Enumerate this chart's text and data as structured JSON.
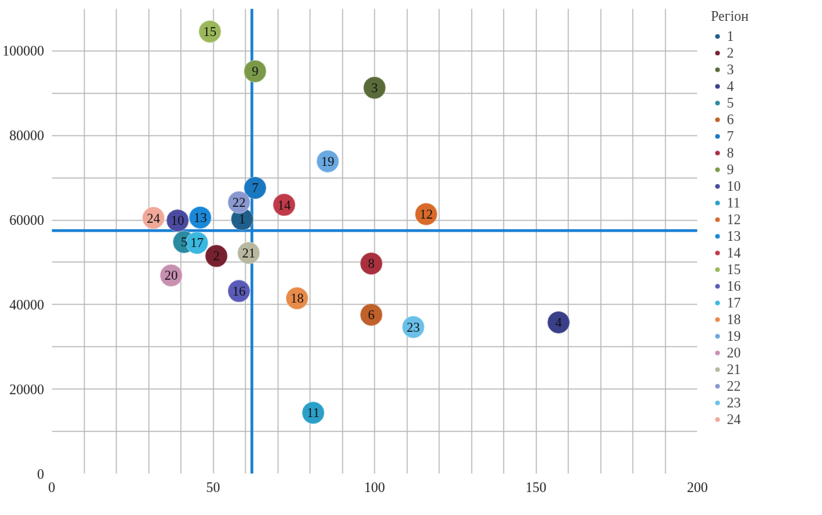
{
  "chart_data": {
    "type": "scatter",
    "legend_title": "Регіон",
    "legend": "right",
    "grid": true,
    "marker": "circle",
    "xlim": [
      0,
      200
    ],
    "xticks": [
      0,
      {
        "value": 10,
        "label": null
      },
      {
        "value": 20,
        "label": null
      },
      {
        "value": 30,
        "label": null
      },
      {
        "value": 40,
        "label": null
      },
      50,
      {
        "value": 60,
        "label": null
      },
      {
        "value": 70,
        "label": null
      },
      {
        "value": 80,
        "label": null
      },
      {
        "value": 90,
        "label": null
      },
      100,
      {
        "value": 110,
        "label": null
      },
      {
        "value": 120,
        "label": null
      },
      {
        "value": 130,
        "label": null
      },
      {
        "value": 140,
        "label": null
      },
      150,
      {
        "value": 160,
        "label": null
      },
      {
        "value": 170,
        "label": null
      },
      {
        "value": 180,
        "label": null
      },
      {
        "value": 190,
        "label": null
      },
      200
    ],
    "ylim": [
      0,
      110000
    ],
    "yticks": [
      0,
      {
        "value": 10000,
        "label": null
      },
      20000,
      {
        "value": 30000,
        "label": null
      },
      40000,
      {
        "value": 50000,
        "label": null
      },
      60000,
      {
        "value": 70000,
        "label": null
      },
      80000,
      {
        "value": 90000,
        "label": null
      },
      100000
    ],
    "ref_lines": [
      {
        "axis": "x",
        "value": 62,
        "color": "#1a7fd4"
      },
      {
        "axis": "y",
        "value": 57500,
        "color": "#1a7fd4"
      }
    ],
    "series": [
      {
        "name": "1",
        "color": "#1f5f8b",
        "x": [
          59
        ],
        "values": [
          60200
        ]
      },
      {
        "name": "2",
        "color": "#762030",
        "x": [
          51
        ],
        "values": [
          51500
        ]
      },
      {
        "name": "3",
        "color": "#5a6b3a",
        "x": [
          100
        ],
        "values": [
          91300
        ]
      },
      {
        "name": "4",
        "color": "#3a3f8a",
        "x": [
          157
        ],
        "values": [
          35800
        ]
      },
      {
        "name": "5",
        "color": "#2a8aa0",
        "x": [
          41
        ],
        "values": [
          54800
        ]
      },
      {
        "name": "6",
        "color": "#c0602a",
        "x": [
          99
        ],
        "values": [
          37600
        ]
      },
      {
        "name": "7",
        "color": "#1a78c0",
        "x": [
          63
        ],
        "values": [
          67600
        ]
      },
      {
        "name": "8",
        "color": "#a8303f",
        "x": [
          99
        ],
        "values": [
          49700
        ]
      },
      {
        "name": "9",
        "color": "#7a9a4a",
        "x": [
          63
        ],
        "values": [
          95200
        ]
      },
      {
        "name": "10",
        "color": "#4a4aa0",
        "x": [
          39
        ],
        "values": [
          59900
        ]
      },
      {
        "name": "11",
        "color": "#2aa0c8",
        "x": [
          81
        ],
        "values": [
          14400
        ]
      },
      {
        "name": "12",
        "color": "#d86a2a",
        "x": [
          116
        ],
        "values": [
          61400
        ]
      },
      {
        "name": "13",
        "color": "#1a88d8",
        "x": [
          46
        ],
        "values": [
          60600
        ]
      },
      {
        "name": "14",
        "color": "#c03a4a",
        "x": [
          72
        ],
        "values": [
          63600
        ]
      },
      {
        "name": "15",
        "color": "#9ab85a",
        "x": [
          49
        ],
        "values": [
          104600
        ]
      },
      {
        "name": "16",
        "color": "#5a5ab8",
        "x": [
          58
        ],
        "values": [
          43200
        ]
      },
      {
        "name": "17",
        "color": "#3ab8e0",
        "x": [
          45
        ],
        "values": [
          54600
        ]
      },
      {
        "name": "18",
        "color": "#e88a4a",
        "x": [
          76
        ],
        "values": [
          41500
        ]
      },
      {
        "name": "19",
        "color": "#6aa8e0",
        "x": [
          85.5
        ],
        "values": [
          73900
        ]
      },
      {
        "name": "20",
        "color": "#c890b0",
        "x": [
          37
        ],
        "values": [
          46900
        ]
      },
      {
        "name": "21",
        "color": "#b8b8a0",
        "x": [
          61
        ],
        "values": [
          52200
        ]
      },
      {
        "name": "22",
        "color": "#8a98d0",
        "x": [
          58
        ],
        "values": [
          64200
        ]
      },
      {
        "name": "23",
        "color": "#6ac0e8",
        "x": [
          112
        ],
        "values": [
          34700
        ]
      },
      {
        "name": "24",
        "color": "#f0a898",
        "x": [
          31.5
        ],
        "values": [
          60500
        ]
      }
    ]
  }
}
